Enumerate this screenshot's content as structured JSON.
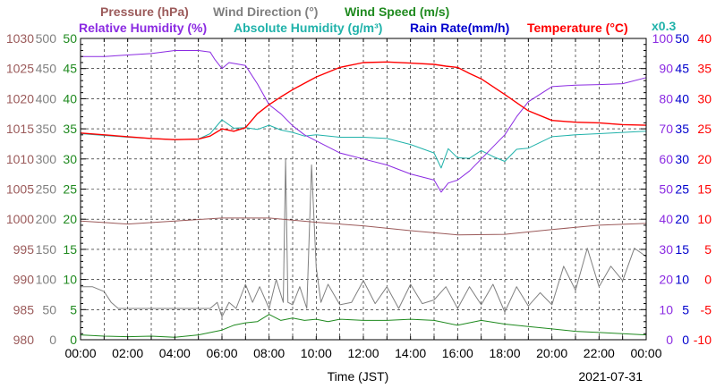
{
  "chart_data": {
    "type": "line",
    "date": "2021-07-31",
    "xlabel": "Time (JST)",
    "x_ticks": [
      "00:00",
      "02:00",
      "04:00",
      "06:00",
      "08:00",
      "10:00",
      "12:00",
      "14:00",
      "16:00",
      "18:00",
      "20:00",
      "22:00",
      "00:00"
    ],
    "x_range_hours": [
      0,
      24
    ],
    "scale_note": "x0.3",
    "grid": true,
    "legend": [
      {
        "name": "Pressure (hPa)",
        "color": "#9b5a5a"
      },
      {
        "name": "Wind Direction (°)",
        "color": "#808080"
      },
      {
        "name": "Wind Speed (m/s)",
        "color": "#1f8a1f"
      },
      {
        "name": "Relative Humidity (%)",
        "color": "#8b2be2"
      },
      {
        "name": "Absolute Humidity (g/m³)",
        "color": "#20b2aa"
      },
      {
        "name": "Rain Rate(mm/h)",
        "color": "#0000cd"
      },
      {
        "name": "Temperature (°C)",
        "color": "#ff0000"
      }
    ],
    "axes": [
      {
        "key": "pressure",
        "color": "#9b5a5a",
        "range": [
          980,
          1030
        ],
        "ticks": [
          "1030",
          "1025",
          "1020",
          "1015",
          "1010",
          "1005",
          "1000",
          "995",
          "990",
          "985",
          "980"
        ]
      },
      {
        "key": "wind_direction",
        "color": "#808080",
        "range": [
          0,
          500
        ],
        "ticks": [
          "500",
          "450",
          "400",
          "350",
          "300",
          "250",
          "200",
          "150",
          "100",
          "50",
          "0"
        ]
      },
      {
        "key": "wind_speed",
        "color": "#1f8a1f",
        "range": [
          0,
          50
        ],
        "ticks": [
          "50",
          "45",
          "40",
          "35",
          "30",
          "25",
          "20",
          "15",
          "10",
          "5",
          "0"
        ]
      },
      {
        "key": "relative_humidity",
        "color": "#8b2be2",
        "range": [
          0,
          100
        ],
        "ticks": [
          "100",
          "90",
          "80",
          "70",
          "60",
          "50",
          "40",
          "30",
          "20",
          "10",
          "0"
        ]
      },
      {
        "key": "rain_rate",
        "color": "#0000cd",
        "range": [
          0,
          50
        ],
        "ticks": [
          "50",
          "45",
          "40",
          "35",
          "30",
          "25",
          "20",
          "15",
          "10",
          "5",
          "0"
        ]
      },
      {
        "key": "temperature",
        "color": "#ff0000",
        "range": [
          -10,
          40
        ],
        "ticks": [
          "40",
          "35",
          "30",
          "25",
          "20",
          "15",
          "10",
          "5",
          "0",
          "-5",
          "-10"
        ]
      }
    ],
    "series": [
      {
        "name": "Temperature (°C)",
        "color": "#ff0000",
        "axis": "temperature",
        "x": [
          0,
          1,
          2,
          3,
          4,
          5,
          5.5,
          6,
          6.5,
          7,
          7.5,
          8,
          8.5,
          9,
          10,
          11,
          12,
          13,
          14,
          15,
          15.5,
          16,
          16.5,
          17,
          18,
          19,
          20,
          21,
          22,
          23,
          24
        ],
        "y": [
          24.3,
          24.0,
          23.7,
          23.4,
          23.2,
          23.3,
          23.8,
          25.0,
          24.6,
          25.2,
          27.5,
          29.0,
          30.3,
          31.5,
          33.6,
          35.2,
          36.0,
          36.1,
          35.9,
          35.7,
          35.4,
          35.2,
          34.2,
          33.3,
          30.7,
          28.0,
          26.4,
          26.1,
          26.0,
          25.7,
          25.6
        ]
      },
      {
        "name": "Absolute Humidity (g/m³)",
        "color": "#20b2aa",
        "axis": "wind_speed",
        "x": [
          0,
          1,
          2,
          3,
          4,
          5,
          5.5,
          6,
          6.5,
          7,
          7.5,
          8,
          8.5,
          9,
          9.5,
          10,
          11,
          12,
          13,
          14,
          15,
          15.3,
          15.6,
          16,
          16.5,
          17,
          17.5,
          18,
          18.5,
          19,
          20,
          21,
          22,
          23,
          24
        ],
        "y": [
          34.2,
          33.9,
          33.6,
          33.4,
          33.2,
          33.3,
          34.2,
          36.5,
          35.1,
          35.2,
          34.9,
          35.6,
          34.8,
          34.4,
          33.8,
          34.0,
          33.6,
          33.6,
          33.4,
          32.4,
          31.0,
          28.5,
          31.7,
          30.2,
          30.1,
          31.4,
          30.4,
          29.6,
          31.6,
          31.8,
          33.7,
          34.0,
          34.2,
          34.4,
          34.6
        ]
      },
      {
        "name": "Relative Humidity (%)",
        "color": "#8b2be2",
        "axis": "relative_humidity",
        "x": [
          0,
          1,
          2,
          3,
          4,
          5,
          5.5,
          5.7,
          6,
          6.3,
          7,
          7.5,
          8,
          8.5,
          9,
          9.5,
          10,
          10.5,
          11,
          12,
          13,
          14,
          15,
          15.3,
          15.6,
          16,
          16.5,
          17,
          17.5,
          18,
          18.5,
          19,
          20,
          21,
          22,
          23,
          24
        ],
        "y": [
          94,
          94,
          94.5,
          95,
          96,
          96,
          95.5,
          93,
          90,
          92,
          91,
          85,
          78,
          75,
          71,
          68,
          66,
          64,
          62,
          60,
          58,
          55,
          53,
          49,
          52,
          53,
          56,
          60,
          64,
          68,
          74,
          79,
          84,
          84.5,
          84.7,
          85,
          87
        ]
      },
      {
        "name": "Pressure (hPa)",
        "color": "#9b5a5a",
        "axis": "pressure",
        "x": [
          0,
          2,
          4,
          6,
          8,
          10,
          12,
          14,
          16,
          18,
          20,
          22,
          24
        ],
        "y": [
          999.7,
          999.2,
          999.7,
          1000.2,
          1000.2,
          999.5,
          998.9,
          998.1,
          997.4,
          997.5,
          998.3,
          999.0,
          999.3
        ]
      },
      {
        "name": "Wind Direction (°)",
        "color": "#808080",
        "axis": "wind_direction",
        "x": [
          0,
          0.5,
          1,
          1.3,
          1.6,
          2,
          3,
          4,
          4.5,
          5,
          5.5,
          5.8,
          6,
          6.3,
          6.6,
          7,
          7.3,
          7.6,
          8,
          8.3,
          8.6,
          8.7,
          8.8,
          9,
          9.3,
          9.6,
          9.8,
          10,
          10.2,
          10.5,
          11,
          11.5,
          12,
          12.5,
          13,
          13.5,
          14,
          14.5,
          15,
          15.5,
          16,
          16.5,
          17,
          17.5,
          18,
          18.5,
          19,
          19.5,
          20,
          20.5,
          21,
          21.5,
          22,
          22.5,
          23,
          23.5,
          24
        ],
        "y": [
          88,
          88,
          80,
          62,
          52,
          52,
          52,
          52,
          52,
          52,
          52,
          62,
          38,
          62,
          52,
          92,
          62,
          88,
          52,
          100,
          62,
          300,
          62,
          58,
          88,
          52,
          290,
          120,
          62,
          92,
          58,
          62,
          98,
          60,
          88,
          52,
          92,
          60,
          66,
          88,
          52,
          88,
          58,
          92,
          46,
          88,
          56,
          78,
          58,
          122,
          82,
          152,
          88,
          122,
          98,
          152,
          138
        ]
      },
      {
        "name": "Wind Speed (m/s)",
        "color": "#1f8a1f",
        "axis": "wind_speed",
        "x": [
          0,
          1,
          2,
          3,
          4,
          5,
          6,
          6.5,
          7,
          7.5,
          8,
          8.5,
          9,
          9.5,
          10,
          10.5,
          11,
          12,
          13,
          14,
          15,
          16,
          17,
          18,
          19,
          20,
          21,
          22,
          23,
          24
        ],
        "y": [
          0.8,
          0.6,
          0.5,
          0.6,
          0.4,
          0.8,
          1.6,
          2.4,
          2.8,
          3.0,
          4.2,
          3.2,
          3.6,
          3.2,
          3.4,
          3.0,
          3.4,
          3.2,
          3.2,
          3.4,
          3.2,
          2.4,
          3.2,
          2.6,
          2.2,
          1.8,
          1.4,
          1.2,
          1.0,
          0.8
        ]
      },
      {
        "name": "Rain Rate(mm/h)",
        "color": "#0000cd",
        "axis": "rain_rate",
        "x": [
          0,
          24
        ],
        "y": [
          0,
          0
        ]
      }
    ]
  }
}
